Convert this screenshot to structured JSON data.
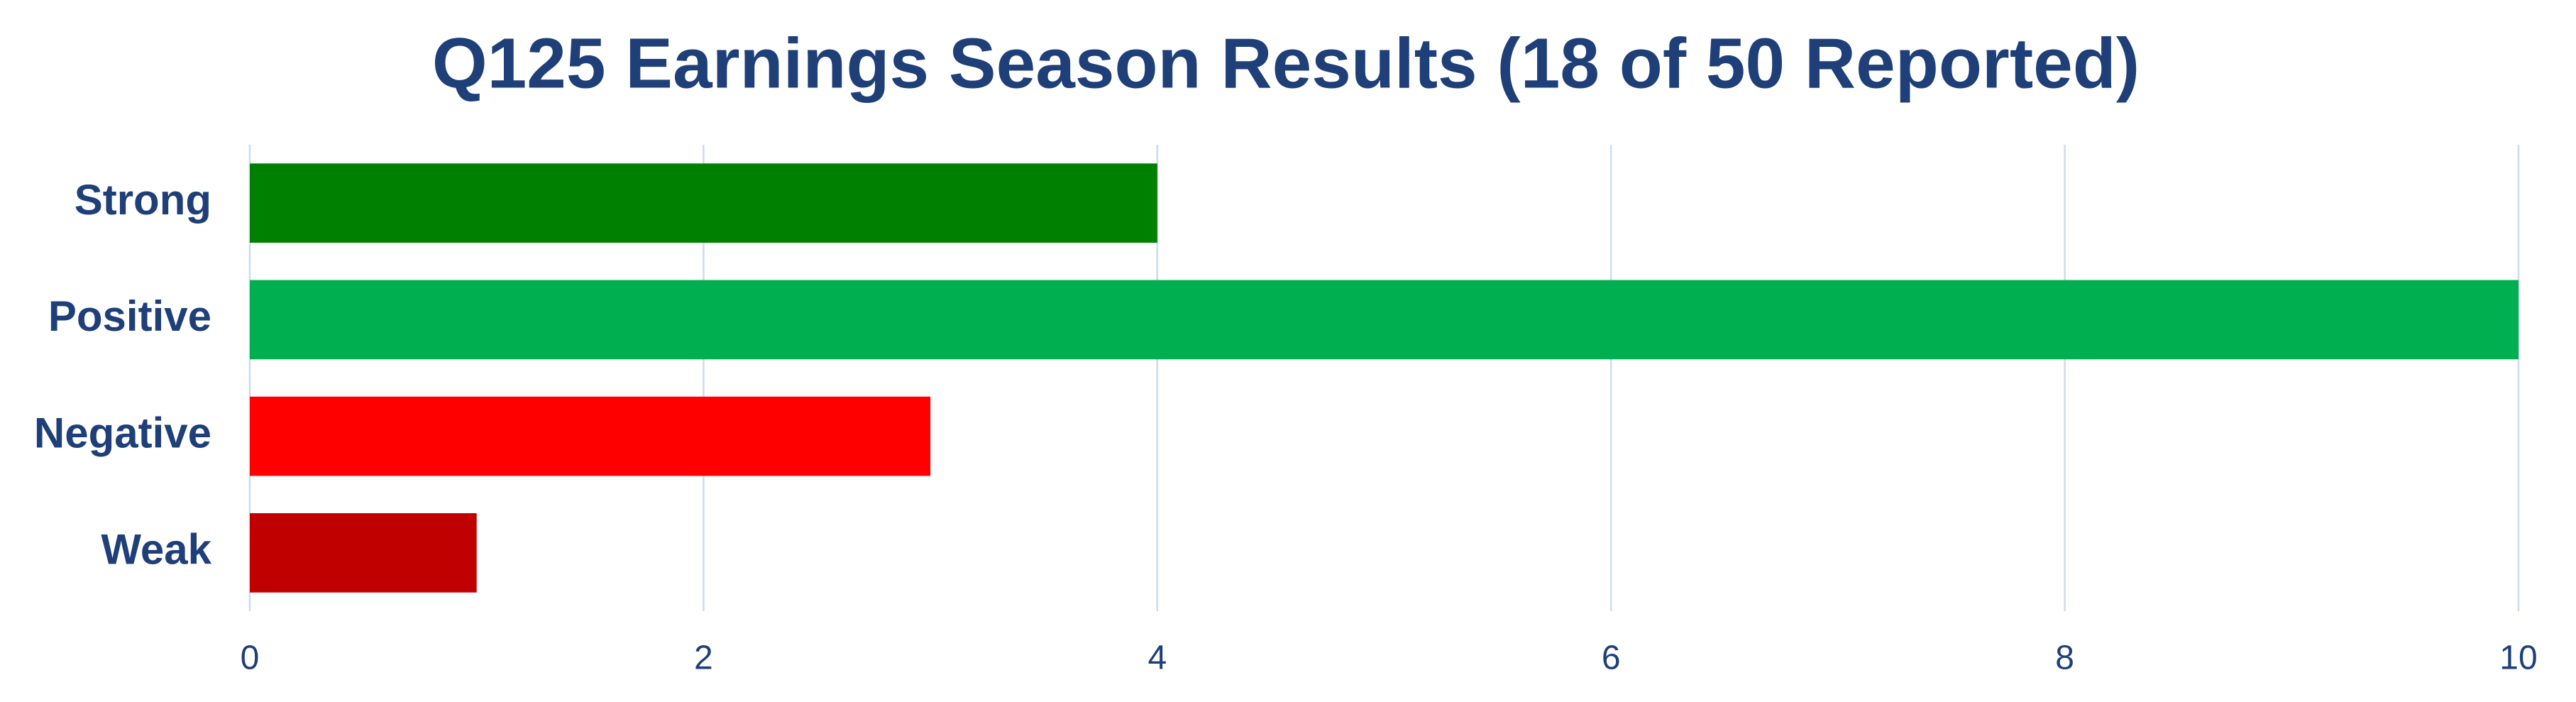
{
  "chart_data": {
    "type": "hbar",
    "title": "Q125 Earnings Season Results (18 of 50 Reported)",
    "categories": [
      "Strong",
      "Positive",
      "Negative",
      "Weak"
    ],
    "values": [
      4,
      10,
      3,
      1
    ],
    "colors": [
      "#008000",
      "#00b050",
      "#ff0000",
      "#c00000"
    ],
    "xlim": [
      0,
      10
    ],
    "xticks": [
      0,
      2,
      4,
      6,
      8,
      10
    ],
    "grid": true
  }
}
